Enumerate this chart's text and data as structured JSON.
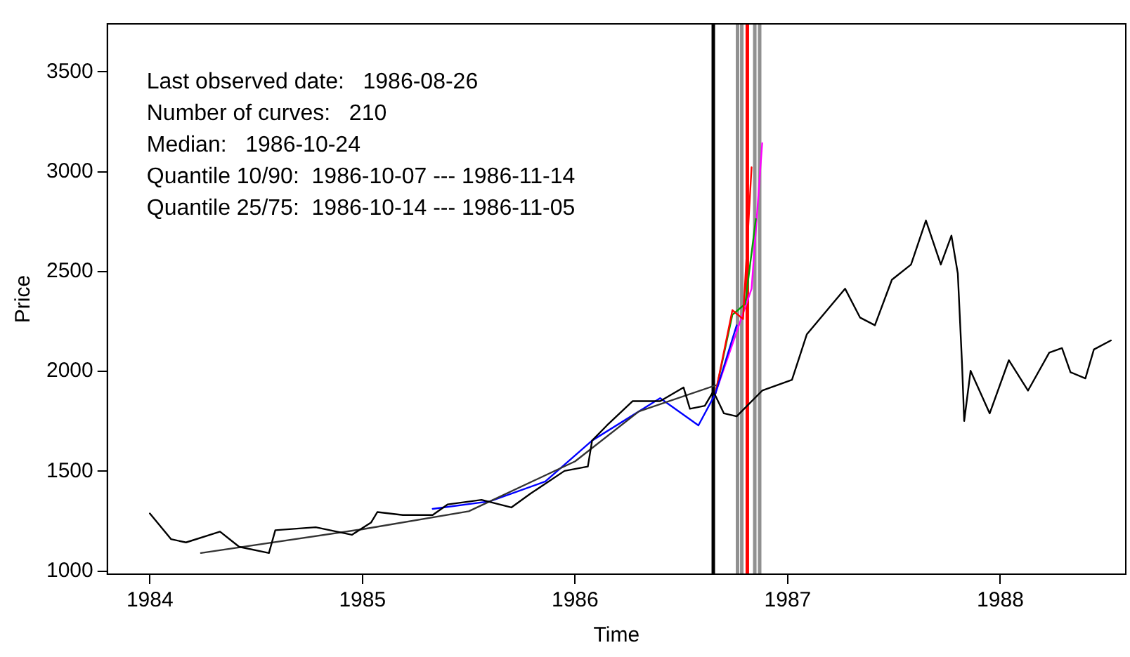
{
  "chart_data": {
    "type": "line",
    "xlabel": "Time",
    "ylabel": "Price",
    "xlim": [
      1983.8,
      1988.59
    ],
    "ylim": [
      985,
      3740
    ],
    "xticks": [
      1984,
      1985,
      1986,
      1987,
      1988
    ],
    "yticks": [
      1000,
      1500,
      2000,
      2500,
      3000,
      3500
    ],
    "grid": false,
    "legend": false,
    "marker": "none",
    "line_style": "solid",
    "series": [
      {
        "color": "#000000",
        "x": [
          1984.0,
          1984.1,
          1984.17,
          1984.33,
          1984.42,
          1984.56,
          1984.59,
          1984.78,
          1984.95,
          1985.04,
          1985.07,
          1985.19,
          1985.33,
          1985.4,
          1985.56,
          1985.7,
          1985.79,
          1985.95,
          1986.06,
          1986.08,
          1986.15,
          1986.27,
          1986.4,
          1986.51,
          1986.54,
          1986.61,
          1986.65,
          1986.7,
          1986.76,
          1986.88,
          1987.02,
          1987.09,
          1987.27,
          1987.34,
          1987.41,
          1987.49,
          1987.58,
          1987.65,
          1987.72,
          1987.77,
          1987.8,
          1987.82,
          1987.83,
          1987.86,
          1987.95,
          1988.04,
          1988.13,
          1988.23,
          1988.29,
          1988.33,
          1988.4,
          1988.44,
          1988.52
        ],
        "values": [
          1289,
          1160,
          1144,
          1198,
          1122,
          1091,
          1205,
          1220,
          1182,
          1243,
          1296,
          1281,
          1281,
          1334,
          1357,
          1319,
          1388,
          1502,
          1524,
          1654,
          1730,
          1851,
          1851,
          1920,
          1813,
          1828,
          1900,
          1790,
          1775,
          1904,
          1958,
          2186,
          2414,
          2270,
          2231,
          2459,
          2535,
          2756,
          2535,
          2680,
          2490,
          2034,
          1752,
          2003,
          1790,
          2056,
          1904,
          2094,
          2117,
          1996,
          1965,
          2110,
          2155
        ]
      },
      {
        "color": "#333333",
        "x": [
          1984.24,
          1985.0,
          1985.5,
          1986.0,
          1986.3,
          1986.66
        ],
        "values": [
          1091,
          1210,
          1300,
          1550,
          1800,
          1930
        ]
      },
      {
        "color": "#0000ff",
        "x": [
          1985.33,
          1985.6,
          1985.86,
          1986.08,
          1986.4,
          1986.58,
          1986.66,
          1986.76
        ],
        "values": [
          1312,
          1350,
          1449,
          1654,
          1866,
          1730,
          1889,
          2231
        ]
      },
      {
        "color": "#ff0000",
        "x": [
          1986.66,
          1986.74,
          1986.79,
          1986.83
        ],
        "values": [
          1890,
          2307,
          2262,
          3022
        ]
      },
      {
        "color": "#00a000",
        "x": [
          1986.66,
          1986.74,
          1986.8,
          1986.85
        ],
        "values": [
          1890,
          2284,
          2338,
          2763
        ]
      },
      {
        "color": "#ff00ff",
        "x": [
          1986.66,
          1986.83,
          1986.88
        ],
        "values": [
          1890,
          2414,
          3143
        ]
      }
    ],
    "ref_lines": [
      {
        "axis": "x",
        "value": 1986.65,
        "color": "#000000"
      },
      {
        "axis": "x",
        "value": 1986.764,
        "color": "#909090"
      },
      {
        "axis": "x",
        "value": 1986.784,
        "color": "#909090"
      },
      {
        "axis": "x",
        "value": 1986.81,
        "color": "#ff0000"
      },
      {
        "axis": "x",
        "value": 1986.845,
        "color": "#909090"
      },
      {
        "axis": "x",
        "value": 1986.868,
        "color": "#909090"
      }
    ],
    "annotations": [
      "Last observed date:   1986-08-26",
      "Number of curves:   210",
      "Median:   1986-10-24",
      "Quantile 10/90:  1986-10-07 --- 1986-11-14",
      "Quantile 25/75:  1986-10-14 --- 1986-11-05"
    ]
  }
}
